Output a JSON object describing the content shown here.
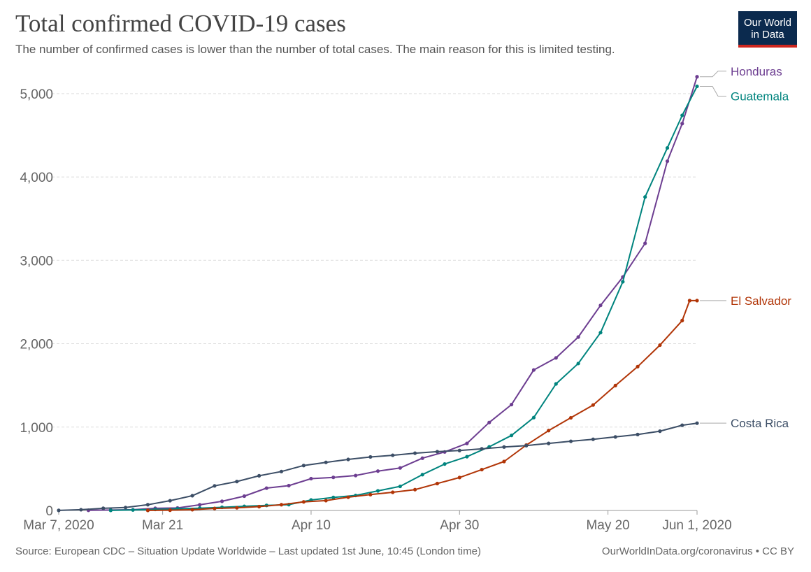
{
  "header": {
    "title": "Total confirmed COVID-19 cases",
    "subtitle": "The number of confirmed cases is lower than the number of total cases. The main reason for this is limited testing."
  },
  "logo": {
    "line1": "Our World",
    "line2": "in Data",
    "bg": "#0b2a4e",
    "accent": "#ce261e"
  },
  "footer": {
    "source": "Source: European CDC – Situation Update Worldwide – Last updated 1st June, 10:45 (London time)",
    "link": "OurWorldInData.org/coronavirus • CC BY"
  },
  "chart_data": {
    "type": "line",
    "title": "Total confirmed COVID-19 cases",
    "subtitle": "The number of confirmed cases is lower than the number of total cases. The main reason for this is limited testing.",
    "x_start": "2020-03-07",
    "x_end": "2020-06-01",
    "x_ticks": [
      {
        "date": "2020-03-07",
        "label": "Mar 7, 2020"
      },
      {
        "date": "2020-03-21",
        "label": "Mar 21"
      },
      {
        "date": "2020-04-10",
        "label": "Apr 10"
      },
      {
        "date": "2020-04-30",
        "label": "Apr 30"
      },
      {
        "date": "2020-05-20",
        "label": "May 20"
      },
      {
        "date": "2020-06-01",
        "label": "Jun 1, 2020"
      }
    ],
    "y_ticks": [
      {
        "value": 0,
        "label": "0"
      },
      {
        "value": 1000,
        "label": "1,000"
      },
      {
        "value": 2000,
        "label": "2,000"
      },
      {
        "value": 3000,
        "label": "3,000"
      },
      {
        "value": 4000,
        "label": "4,000"
      },
      {
        "value": 5000,
        "label": "5,000"
      }
    ],
    "ylim": [
      0,
      5200
    ],
    "grid": "horizontal dashed",
    "legend": "right, labels at line ends",
    "series": [
      {
        "name": "Honduras",
        "color": "#6d3e91",
        "points": [
          [
            "2020-03-11",
            2
          ],
          [
            "2020-03-14",
            5
          ],
          [
            "2020-03-17",
            9
          ],
          [
            "2020-03-20",
            26
          ],
          [
            "2020-03-23",
            30
          ],
          [
            "2020-03-26",
            68
          ],
          [
            "2020-03-29",
            110
          ],
          [
            "2020-04-01",
            172
          ],
          [
            "2020-04-04",
            268
          ],
          [
            "2020-04-07",
            298
          ],
          [
            "2020-04-10",
            382
          ],
          [
            "2020-04-13",
            397
          ],
          [
            "2020-04-16",
            419
          ],
          [
            "2020-04-19",
            472
          ],
          [
            "2020-04-22",
            510
          ],
          [
            "2020-04-25",
            627
          ],
          [
            "2020-04-28",
            702
          ],
          [
            "2020-05-01",
            804
          ],
          [
            "2020-05-04",
            1055
          ],
          [
            "2020-05-07",
            1270
          ],
          [
            "2020-05-10",
            1685
          ],
          [
            "2020-05-13",
            1830
          ],
          [
            "2020-05-16",
            2080
          ],
          [
            "2020-05-19",
            2460
          ],
          [
            "2020-05-22",
            2800
          ],
          [
            "2020-05-25",
            3204
          ],
          [
            "2020-05-28",
            4189
          ],
          [
            "2020-05-30",
            4640
          ],
          [
            "2020-06-01",
            5202
          ]
        ]
      },
      {
        "name": "Guatemala",
        "color": "#00847e",
        "points": [
          [
            "2020-03-14",
            1
          ],
          [
            "2020-03-17",
            6
          ],
          [
            "2020-03-20",
            12
          ],
          [
            "2020-03-23",
            20
          ],
          [
            "2020-03-26",
            28
          ],
          [
            "2020-03-29",
            38
          ],
          [
            "2020-04-01",
            50
          ],
          [
            "2020-04-04",
            61
          ],
          [
            "2020-04-07",
            70
          ],
          [
            "2020-04-10",
            126
          ],
          [
            "2020-04-13",
            156
          ],
          [
            "2020-04-16",
            180
          ],
          [
            "2020-04-19",
            235
          ],
          [
            "2020-04-22",
            289
          ],
          [
            "2020-04-25",
            430
          ],
          [
            "2020-04-28",
            557
          ],
          [
            "2020-05-01",
            645
          ],
          [
            "2020-05-04",
            763
          ],
          [
            "2020-05-07",
            900
          ],
          [
            "2020-05-10",
            1114
          ],
          [
            "2020-05-13",
            1518
          ],
          [
            "2020-05-16",
            1763
          ],
          [
            "2020-05-19",
            2133
          ],
          [
            "2020-05-22",
            2743
          ],
          [
            "2020-05-25",
            3760
          ],
          [
            "2020-05-28",
            4348
          ],
          [
            "2020-05-30",
            4739
          ],
          [
            "2020-06-01",
            5087
          ]
        ]
      },
      {
        "name": "El Salvador",
        "color": "#b13507",
        "points": [
          [
            "2020-03-19",
            1
          ],
          [
            "2020-03-22",
            3
          ],
          [
            "2020-03-25",
            9
          ],
          [
            "2020-03-28",
            24
          ],
          [
            "2020-03-31",
            32
          ],
          [
            "2020-04-03",
            46
          ],
          [
            "2020-04-06",
            69
          ],
          [
            "2020-04-09",
            103
          ],
          [
            "2020-04-12",
            118
          ],
          [
            "2020-04-15",
            159
          ],
          [
            "2020-04-18",
            190
          ],
          [
            "2020-04-21",
            218
          ],
          [
            "2020-04-24",
            250
          ],
          [
            "2020-04-27",
            323
          ],
          [
            "2020-04-30",
            395
          ],
          [
            "2020-05-03",
            490
          ],
          [
            "2020-05-06",
            587
          ],
          [
            "2020-05-09",
            784
          ],
          [
            "2020-05-12",
            958
          ],
          [
            "2020-05-15",
            1112
          ],
          [
            "2020-05-18",
            1265
          ],
          [
            "2020-05-21",
            1498
          ],
          [
            "2020-05-24",
            1725
          ],
          [
            "2020-05-27",
            1983
          ],
          [
            "2020-05-30",
            2278
          ],
          [
            "2020-05-31",
            2517
          ],
          [
            "2020-06-01",
            2517
          ]
        ]
      },
      {
        "name": "Costa Rica",
        "color": "#3c4e66",
        "points": [
          [
            "2020-03-07",
            1
          ],
          [
            "2020-03-10",
            9
          ],
          [
            "2020-03-13",
            26
          ],
          [
            "2020-03-16",
            35
          ],
          [
            "2020-03-19",
            69
          ],
          [
            "2020-03-22",
            117
          ],
          [
            "2020-03-25",
            177
          ],
          [
            "2020-03-28",
            295
          ],
          [
            "2020-03-31",
            347
          ],
          [
            "2020-04-03",
            416
          ],
          [
            "2020-04-06",
            467
          ],
          [
            "2020-04-09",
            539
          ],
          [
            "2020-04-12",
            577
          ],
          [
            "2020-04-15",
            612
          ],
          [
            "2020-04-18",
            642
          ],
          [
            "2020-04-21",
            662
          ],
          [
            "2020-04-24",
            687
          ],
          [
            "2020-04-27",
            705
          ],
          [
            "2020-04-30",
            719
          ],
          [
            "2020-05-03",
            739
          ],
          [
            "2020-05-06",
            761
          ],
          [
            "2020-05-09",
            778
          ],
          [
            "2020-05-12",
            804
          ],
          [
            "2020-05-15",
            830
          ],
          [
            "2020-05-18",
            854
          ],
          [
            "2020-05-21",
            882
          ],
          [
            "2020-05-24",
            911
          ],
          [
            "2020-05-27",
            951
          ],
          [
            "2020-05-30",
            1022
          ],
          [
            "2020-06-01",
            1047
          ]
        ]
      }
    ]
  }
}
